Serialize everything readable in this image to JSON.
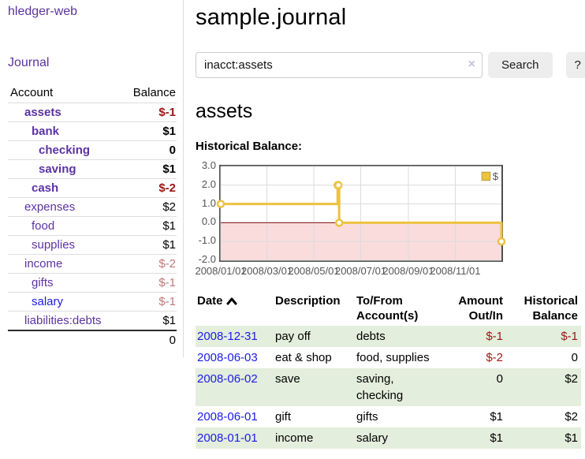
{
  "sidebar": {
    "app_title": "hledger-web",
    "nav": {
      "journal_label": "Journal"
    },
    "accounts": {
      "headers": {
        "account": "Account",
        "balance": "Balance"
      },
      "rows": [
        {
          "account": "assets",
          "balance": "$-1",
          "depth": 1,
          "bold": true,
          "balance_tone": "neg-strong",
          "link_tone": "purple"
        },
        {
          "account": "bank",
          "balance": "$1",
          "depth": 2,
          "bold": true,
          "balance_tone": "",
          "link_tone": "purple"
        },
        {
          "account": "checking",
          "balance": "0",
          "depth": 3,
          "bold": true,
          "balance_tone": "",
          "link_tone": "purple"
        },
        {
          "account": "saving",
          "balance": "$1",
          "depth": 3,
          "bold": true,
          "balance_tone": "",
          "link_tone": "purple"
        },
        {
          "account": "cash",
          "balance": "$-2",
          "depth": 2,
          "bold": true,
          "balance_tone": "neg-strong",
          "link_tone": "purple"
        },
        {
          "account": "expenses",
          "balance": "$2",
          "depth": 1,
          "bold": false,
          "balance_tone": "",
          "link_tone": "purple"
        },
        {
          "account": "food",
          "balance": "$1",
          "depth": 2,
          "bold": false,
          "balance_tone": "",
          "link_tone": "purple"
        },
        {
          "account": "supplies",
          "balance": "$1",
          "depth": 2,
          "bold": false,
          "balance_tone": "",
          "link_tone": "purple"
        },
        {
          "account": "income",
          "balance": "$-2",
          "depth": 1,
          "bold": false,
          "balance_tone": "neg-muted",
          "link_tone": "purple"
        },
        {
          "account": "gifts",
          "balance": "$-1",
          "depth": 2,
          "bold": false,
          "balance_tone": "neg-muted",
          "link_tone": "purple"
        },
        {
          "account": "salary",
          "balance": "$-1",
          "depth": 2,
          "bold": false,
          "balance_tone": "neg-muted",
          "link_tone": "blue"
        },
        {
          "account": "liabilities:debts",
          "balance": "$1",
          "depth": 1,
          "bold": false,
          "balance_tone": "",
          "link_tone": "purple"
        }
      ],
      "total": "0"
    }
  },
  "main": {
    "page_title": "sample.journal",
    "search": {
      "value": "inacct:assets",
      "clear_icon": "×",
      "search_label": "Search",
      "help_label": "?"
    },
    "account_heading": "assets",
    "chart_title": "Historical Balance:"
  },
  "chart_data": {
    "type": "line",
    "title": "Historical Balance:",
    "style": "step",
    "series": [
      {
        "name": "$",
        "color": "#edc240",
        "points": [
          [
            "2008-01-01",
            1
          ],
          [
            "2008-06-01",
            2
          ],
          [
            "2008-06-02",
            2
          ],
          [
            "2008-06-03",
            0
          ],
          [
            "2008-12-31",
            -1
          ]
        ]
      }
    ],
    "xlim": [
      "2008-01-01",
      "2008-12-31"
    ],
    "ylim": [
      -2,
      3
    ],
    "ytick_labels": [
      "3.0",
      "2.0",
      "1.0",
      "0.0",
      "-1.0",
      "-2.0"
    ],
    "yticks": [
      3,
      2,
      1,
      0,
      -1,
      -2
    ],
    "xticks": [
      {
        "date": "2008-01-01",
        "label": "2008/01/01"
      },
      {
        "date": "2008-03-01",
        "label": "2008/03/01"
      },
      {
        "date": "2008-05-01",
        "label": "2008/05/01"
      },
      {
        "date": "2008-07-01",
        "label": "2008/07/01"
      },
      {
        "date": "2008-09-01",
        "label": "2008/09/01"
      },
      {
        "date": "2008-11-01",
        "label": "2008/11/01"
      }
    ],
    "legend_position": "top-right",
    "grid": true,
    "negative_region_color": "#fadcdc",
    "zero_line_color": "#7d1010",
    "grid_color": "#dcdcdc"
  },
  "register": {
    "headers": [
      "Date",
      "Description",
      "To/From Account(s)",
      "Amount Out/In",
      "Historical Balance"
    ],
    "sort_column": "Date",
    "sort_direction": "asc",
    "rows": [
      {
        "date": "2008-12-31",
        "description": "pay off",
        "accounts": "debts",
        "amount": "$-1",
        "balance": "$-1"
      },
      {
        "date": "2008-06-03",
        "description": "eat & shop",
        "accounts": "food, supplies",
        "amount": "$-2",
        "balance": "0"
      },
      {
        "date": "2008-06-02",
        "description": "save",
        "accounts": "saving, checking",
        "amount": "0",
        "balance": "$2"
      },
      {
        "date": "2008-06-01",
        "description": "gift",
        "accounts": "gifts",
        "amount": "$1",
        "balance": "$2"
      },
      {
        "date": "2008-01-01",
        "description": "income",
        "accounts": "salary",
        "amount": "$1",
        "balance": "$1"
      }
    ]
  }
}
